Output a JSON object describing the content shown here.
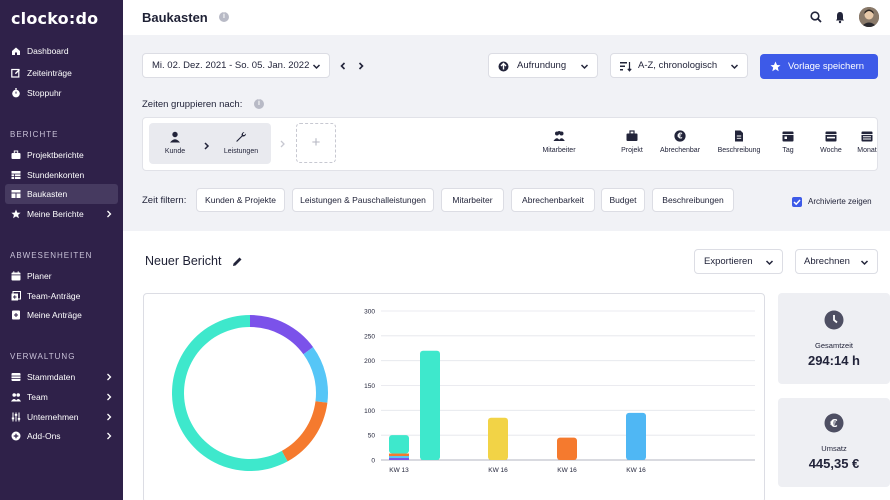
{
  "sidebar": {
    "logo": "clocko:do",
    "main_items": [
      {
        "label": "Dashboard",
        "icon": "home-icon"
      },
      {
        "label": "Zeiteinträge",
        "icon": "edit-icon"
      },
      {
        "label": "Stoppuhr",
        "icon": "stopwatch-icon"
      }
    ],
    "sections": [
      {
        "title": "BERICHTE",
        "items": [
          {
            "label": "Projektberichte",
            "icon": "briefcase-icon"
          },
          {
            "label": "Stundenkonten",
            "icon": "table-icon"
          },
          {
            "label": "Baukasten",
            "icon": "layout-icon",
            "active": true
          },
          {
            "label": "Meine Berichte",
            "icon": "star-icon",
            "chevron": true
          }
        ]
      },
      {
        "title": "ABWESENHEITEN",
        "items": [
          {
            "label": "Planer",
            "icon": "calendar-icon"
          },
          {
            "label": "Team-Anträge",
            "icon": "team-request-icon"
          },
          {
            "label": "Meine Anträge",
            "icon": "my-request-icon"
          }
        ]
      },
      {
        "title": "VERWALTUNG",
        "items": [
          {
            "label": "Stammdaten",
            "icon": "database-icon",
            "chevron": true
          },
          {
            "label": "Team",
            "icon": "team-icon",
            "chevron": true
          },
          {
            "label": "Unternehmen",
            "icon": "sliders-icon",
            "chevron": true
          },
          {
            "label": "Add-Ons",
            "icon": "plus-circle-icon",
            "chevron": true
          }
        ]
      }
    ]
  },
  "header": {
    "title": "Baukasten"
  },
  "toolbar": {
    "date_range": "Mi. 02. Dez. 2021 - So. 05. Jan. 2022",
    "rounding": "Aufrundung",
    "sort": "A-Z, chronologisch",
    "save_template": "Vorlage speichern"
  },
  "grouping": {
    "label": "Zeiten gruppieren nach:",
    "selected": [
      "Kunde",
      "Leistungen"
    ],
    "add": "+",
    "options": [
      "Mitarbeiter",
      "Projekt",
      "Abrechenbar",
      "Beschreibung",
      "Tag",
      "Woche",
      "Monat"
    ]
  },
  "filter": {
    "label": "Zeit filtern:",
    "chips": [
      "Kunden & Projekte",
      "Leistungen & Pauschalleistungen",
      "Mitarbeiter",
      "Abrechenbarkeit",
      "Budget",
      "Beschreibungen"
    ],
    "archived_label": "Archivierte zeigen"
  },
  "report": {
    "title": "Neuer Bericht",
    "export": "Exportieren",
    "billing": "Abrechnen"
  },
  "stats": [
    {
      "label": "Gesamtzeit",
      "value": "294:14 h",
      "icon": "clock-icon"
    },
    {
      "label": "Umsatz",
      "value": "445,35 €",
      "icon": "euro-icon"
    }
  ],
  "colors": {
    "sidebar": "#2f2149",
    "primary": "#3d5ae8",
    "teal": "#3ee8cc",
    "purple": "#7b52ea",
    "blue": "#56c6f7",
    "orange": "#f57a2e",
    "yellow": "#f2d346",
    "cyan": "#4fb7f4"
  },
  "chart_data": [
    {
      "type": "pie",
      "variant": "donut",
      "slices": [
        {
          "color": "#7b52ea",
          "value": 15
        },
        {
          "color": "#56c6f7",
          "value": 12
        },
        {
          "color": "#f57a2e",
          "value": 15
        },
        {
          "color": "#3ee8cc",
          "value": 58
        }
      ]
    },
    {
      "type": "bar",
      "stacked": true,
      "ylim": [
        0,
        300
      ],
      "yticks": [
        0,
        50,
        100,
        150,
        200,
        250,
        300
      ],
      "bars": [
        {
          "label": "KW 13",
          "segments": [
            {
              "color": "#7b52ea",
              "value": 4
            },
            {
              "color": "#56c6f7",
              "value": 4
            },
            {
              "color": "#f57a2e",
              "value": 5
            },
            {
              "color": "#3ee8cc",
              "value": 37
            }
          ]
        },
        {
          "label": "",
          "segments": [
            {
              "color": "#3ee8cc",
              "value": 220
            }
          ]
        },
        {
          "label": "KW 16",
          "segments": [
            {
              "color": "#f2d346",
              "value": 85
            }
          ]
        },
        {
          "label": "KW 16",
          "segments": [
            {
              "color": "#f57a2e",
              "value": 45
            }
          ]
        },
        {
          "label": "KW 16",
          "segments": [
            {
              "color": "#4fb7f4",
              "value": 95
            }
          ]
        }
      ]
    }
  ]
}
